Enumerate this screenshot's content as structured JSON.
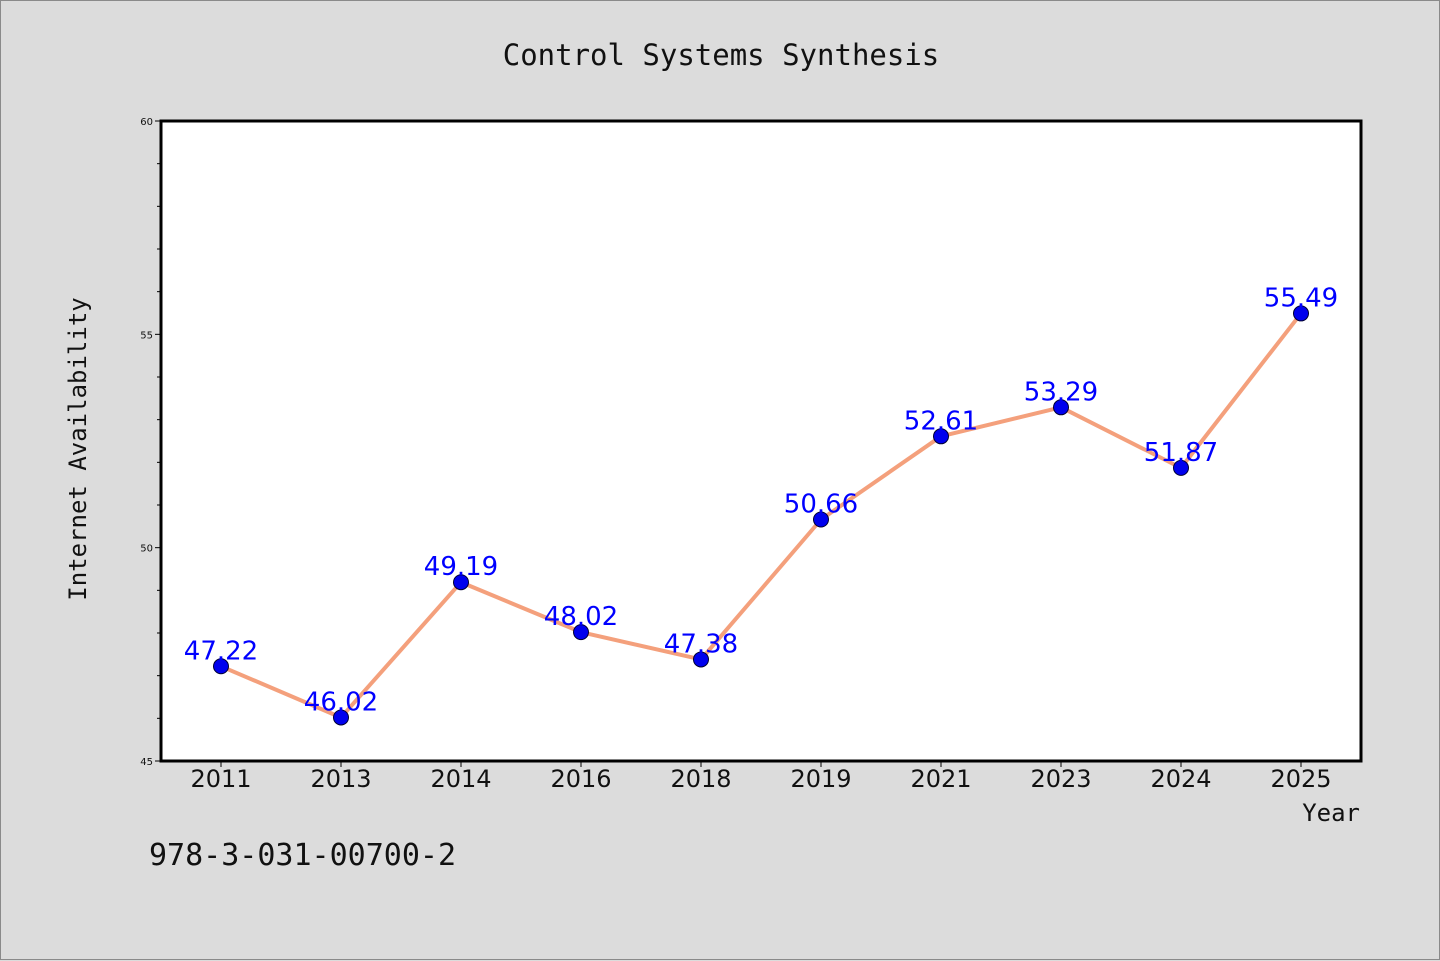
{
  "colors": {
    "background": "#dcdcdc",
    "plot_background": "#ffffff",
    "line": "#f4a07c",
    "marker": "#0000ee",
    "data_label": "#0000ff"
  },
  "footer": "978-3-031-00700-2",
  "chart_data": {
    "type": "line",
    "title": "Control Systems Synthesis",
    "xlabel": "Year",
    "ylabel": "Internet Availability",
    "categories": [
      "2011",
      "2013",
      "2014",
      "2016",
      "2018",
      "2019",
      "2021",
      "2023",
      "2024",
      "2025"
    ],
    "series": [
      {
        "values": [
          47.22,
          46.02,
          49.19,
          48.02,
          47.38,
          50.66,
          52.61,
          53.29,
          51.87,
          55.49
        ],
        "labels": [
          "47.22",
          "46.02",
          "49.19",
          "48.02",
          "47.38",
          "50.66",
          "52.61",
          "53.29",
          "51.87",
          "55.49"
        ]
      }
    ],
    "ylim": [
      45,
      60
    ],
    "yticks": [
      "45",
      "50",
      "55",
      "60"
    ],
    "y_minor_step": 1,
    "grid": false,
    "legend": "none"
  }
}
